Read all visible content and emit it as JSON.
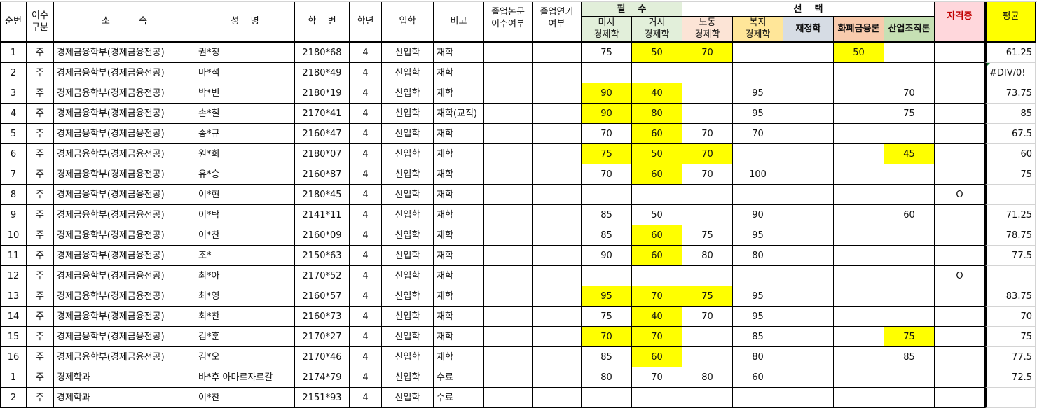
{
  "colors": {
    "required": "#e2efda",
    "labor": "#fce4d6",
    "welfare": "#ffe699",
    "finance": "#d6dce4",
    "money": "#f8cbad",
    "industrial": "#c6e0b4",
    "certificate": "#ffd7dc",
    "certificate_text": "#c00000",
    "average": "#ffff00",
    "highlight": "#ffff00"
  },
  "headers": {
    "no": "순번",
    "type": "이수\n구분",
    "dept": "소          속",
    "name": "성    명",
    "id": "학    번",
    "year": "학년",
    "entry": "입학",
    "note": "비고",
    "thesis": "졸업논문\n이수여부",
    "delay": "졸업연기\n여부",
    "required": "필    수",
    "elective": "선    택",
    "subjects": [
      "미시\n경제학",
      "거시\n경제학",
      "노동\n경제학",
      "복지\n경제학",
      "재정학",
      "화폐금융론",
      "산업조직론"
    ],
    "certificate": "자격증",
    "average": "평균"
  },
  "rows": [
    {
      "no": "1",
      "type": "주",
      "dept": "경제금융학부(경제금융전공)",
      "name": "권*정",
      "id": "2180*68",
      "year": "4",
      "entry": "신입학",
      "note": "재학",
      "scores": [
        "75",
        "50",
        "70",
        "",
        "",
        "50",
        ""
      ],
      "hl": [
        0,
        1,
        1,
        0,
        0,
        1,
        0
      ],
      "cert": "",
      "avg": "61.25"
    },
    {
      "no": "2",
      "type": "주",
      "dept": "경제금융학부(경제금융전공)",
      "name": "마*석",
      "id": "2180*49",
      "year": "4",
      "entry": "신입학",
      "note": "재학",
      "scores": [
        "",
        "",
        "",
        "",
        "",
        "",
        ""
      ],
      "hl": [
        0,
        0,
        0,
        0,
        0,
        0,
        0
      ],
      "cert": "",
      "avg": "#DIV/0!"
    },
    {
      "no": "3",
      "type": "주",
      "dept": "경제금융학부(경제금융전공)",
      "name": "박*빈",
      "id": "2180*19",
      "year": "4",
      "entry": "신입학",
      "note": "재학",
      "scores": [
        "90",
        "40",
        "",
        "95",
        "",
        "",
        "70"
      ],
      "hl": [
        1,
        1,
        0,
        0,
        0,
        0,
        0
      ],
      "cert": "",
      "avg": "73.75"
    },
    {
      "no": "4",
      "type": "주",
      "dept": "경제금융학부(경제금융전공)",
      "name": "손*철",
      "id": "2170*41",
      "year": "4",
      "entry": "신입학",
      "note": "재학(교직)",
      "scores": [
        "90",
        "80",
        "",
        "95",
        "",
        "",
        "75"
      ],
      "hl": [
        1,
        1,
        0,
        0,
        0,
        0,
        0
      ],
      "cert": "",
      "avg": "85"
    },
    {
      "no": "5",
      "type": "주",
      "dept": "경제금융학부(경제금융전공)",
      "name": "송*규",
      "id": "2160*47",
      "year": "4",
      "entry": "신입학",
      "note": "재학",
      "scores": [
        "70",
        "60",
        "70",
        "70",
        "",
        "",
        ""
      ],
      "hl": [
        0,
        1,
        0,
        0,
        0,
        0,
        0
      ],
      "cert": "",
      "avg": "67.5"
    },
    {
      "no": "6",
      "type": "주",
      "dept": "경제금융학부(경제금융전공)",
      "name": "원*희",
      "id": "2180*07",
      "year": "4",
      "entry": "신입학",
      "note": "재학",
      "scores": [
        "75",
        "50",
        "70",
        "",
        "",
        "",
        "45"
      ],
      "hl": [
        1,
        1,
        1,
        0,
        0,
        0,
        1
      ],
      "cert": "",
      "avg": "60"
    },
    {
      "no": "7",
      "type": "주",
      "dept": "경제금융학부(경제금융전공)",
      "name": "유*승",
      "id": "2160*87",
      "year": "4",
      "entry": "신입학",
      "note": "재학",
      "scores": [
        "70",
        "60",
        "70",
        "100",
        "",
        "",
        ""
      ],
      "hl": [
        0,
        1,
        0,
        0,
        0,
        0,
        0
      ],
      "cert": "",
      "avg": "75"
    },
    {
      "no": "8",
      "type": "주",
      "dept": "경제금융학부(경제금융전공)",
      "name": "이*현",
      "id": "2180*45",
      "year": "4",
      "entry": "신입학",
      "note": "재학",
      "scores": [
        "",
        "",
        "",
        "",
        "",
        "",
        ""
      ],
      "hl": [
        0,
        0,
        0,
        0,
        0,
        0,
        0
      ],
      "cert": "O",
      "avg": ""
    },
    {
      "no": "9",
      "type": "주",
      "dept": "경제금융학부(경제금융전공)",
      "name": "이*탁",
      "id": "2141*11",
      "year": "4",
      "entry": "신입학",
      "note": "재학",
      "scores": [
        "85",
        "50",
        "",
        "90",
        "",
        "",
        "60"
      ],
      "hl": [
        0,
        0,
        0,
        0,
        0,
        0,
        0
      ],
      "cert": "",
      "avg": "71.25"
    },
    {
      "no": "10",
      "type": "주",
      "dept": "경제금융학부(경제금융전공)",
      "name": "이*찬",
      "id": "2160*09",
      "year": "4",
      "entry": "신입학",
      "note": "재학",
      "scores": [
        "85",
        "60",
        "75",
        "95",
        "",
        "",
        ""
      ],
      "hl": [
        0,
        1,
        0,
        0,
        0,
        0,
        0
      ],
      "cert": "",
      "avg": "78.75"
    },
    {
      "no": "11",
      "type": "주",
      "dept": "경제금융학부(경제금융전공)",
      "name": "조*",
      "id": "2150*63",
      "year": "4",
      "entry": "신입학",
      "note": "재학",
      "scores": [
        "90",
        "60",
        "80",
        "80",
        "",
        "",
        ""
      ],
      "hl": [
        0,
        1,
        0,
        0,
        0,
        0,
        0
      ],
      "cert": "",
      "avg": "77.5"
    },
    {
      "no": "12",
      "type": "주",
      "dept": "경제금융학부(경제금융전공)",
      "name": "최*아",
      "id": "2170*52",
      "year": "4",
      "entry": "신입학",
      "note": "재학",
      "scores": [
        "",
        "",
        "",
        "",
        "",
        "",
        ""
      ],
      "hl": [
        0,
        0,
        0,
        0,
        0,
        0,
        0
      ],
      "cert": "O",
      "avg": ""
    },
    {
      "no": "13",
      "type": "주",
      "dept": "경제금융학부(경제금융전공)",
      "name": "최*영",
      "id": "2160*57",
      "year": "4",
      "entry": "신입학",
      "note": "재학",
      "scores": [
        "95",
        "70",
        "75",
        "95",
        "",
        "",
        ""
      ],
      "hl": [
        1,
        1,
        1,
        0,
        0,
        0,
        0
      ],
      "cert": "",
      "avg": "83.75"
    },
    {
      "no": "14",
      "type": "주",
      "dept": "경제금융학부(경제금융전공)",
      "name": "최*찬",
      "id": "2160*73",
      "year": "4",
      "entry": "신입학",
      "note": "재학",
      "scores": [
        "75",
        "40",
        "70",
        "95",
        "",
        "",
        ""
      ],
      "hl": [
        0,
        1,
        0,
        0,
        0,
        0,
        0
      ],
      "cert": "",
      "avg": "70"
    },
    {
      "no": "15",
      "type": "주",
      "dept": "경제금융학부(경제금융전공)",
      "name": "김*훈",
      "id": "2170*27",
      "year": "4",
      "entry": "신입학",
      "note": "재학",
      "scores": [
        "70",
        "70",
        "",
        "85",
        "",
        "",
        "75"
      ],
      "hl": [
        1,
        1,
        0,
        0,
        0,
        0,
        1
      ],
      "cert": "",
      "avg": "75"
    },
    {
      "no": "16",
      "type": "주",
      "dept": "경제금융학부(경제금융전공)",
      "name": "김*오",
      "id": "2170*46",
      "year": "4",
      "entry": "신입학",
      "note": "재학",
      "scores": [
        "85",
        "60",
        "",
        "80",
        "",
        "",
        "85"
      ],
      "hl": [
        0,
        1,
        0,
        0,
        0,
        0,
        0
      ],
      "cert": "",
      "avg": "77.5"
    },
    {
      "no": "1",
      "type": "주",
      "dept": "경제학과",
      "name": "바*후 아마르자르갈",
      "id": "2174*79",
      "year": "4",
      "entry": "신입학",
      "note": "수료",
      "scores": [
        "80",
        "70",
        "80",
        "60",
        "",
        "",
        ""
      ],
      "hl": [
        0,
        0,
        0,
        0,
        0,
        0,
        0
      ],
      "cert": "",
      "avg": "72.5"
    },
    {
      "no": "2",
      "type": "주",
      "dept": "경제학과",
      "name": "이*찬",
      "id": "2151*93",
      "year": "4",
      "entry": "신입학",
      "note": "수료",
      "scores": [
        "",
        "",
        "",
        "",
        "",
        "",
        ""
      ],
      "hl": [
        0,
        0,
        0,
        0,
        0,
        0,
        0
      ],
      "cert": "",
      "avg": ""
    }
  ]
}
